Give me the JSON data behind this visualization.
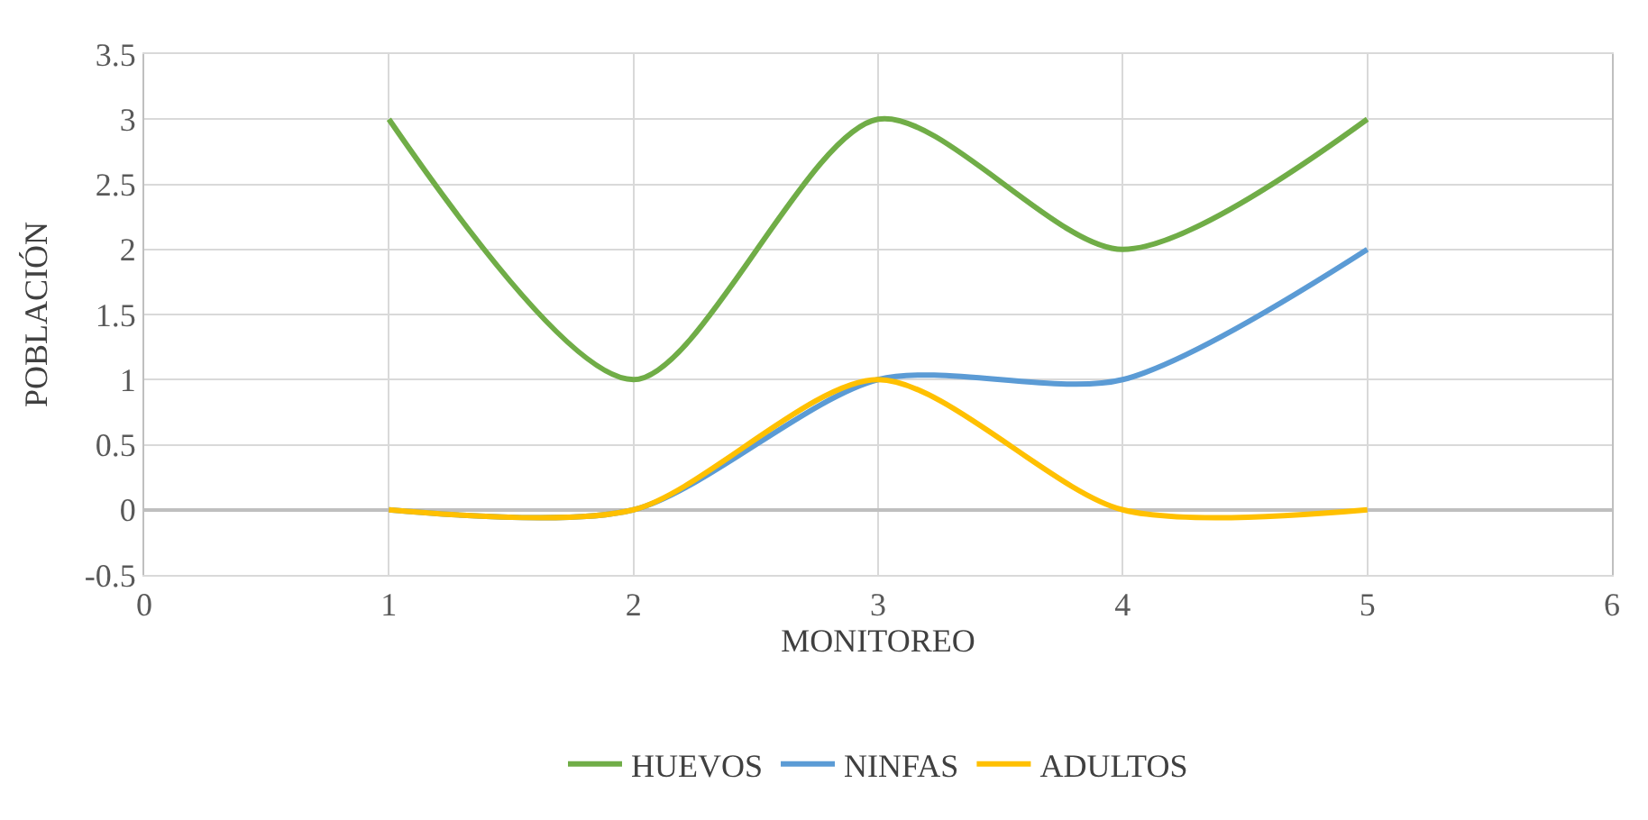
{
  "chart_data": {
    "type": "line",
    "xlabel": "MONITOREO",
    "ylabel": "POBLACIÓN",
    "x": [
      1,
      2,
      3,
      4,
      5
    ],
    "series": [
      {
        "name": "HUEVOS",
        "color": "#70ad47",
        "values": [
          3,
          1,
          3,
          2,
          3
        ]
      },
      {
        "name": "NINFAS",
        "color": "#5b9bd5",
        "values": [
          0,
          0,
          1,
          1,
          2
        ]
      },
      {
        "name": "ADULTOS",
        "color": "#ffc000",
        "values": [
          0,
          0,
          1,
          0,
          0
        ]
      }
    ],
    "xlim": [
      0,
      6
    ],
    "xticks": [
      0,
      1,
      2,
      3,
      4,
      5,
      6
    ],
    "ylim": [
      -0.5,
      3.5
    ],
    "yticks": [
      -0.5,
      0,
      0.5,
      1,
      1.5,
      2,
      2.5,
      3,
      3.5
    ],
    "grid": true,
    "legend": "bottom",
    "marker": "none",
    "line_style": "solid"
  }
}
